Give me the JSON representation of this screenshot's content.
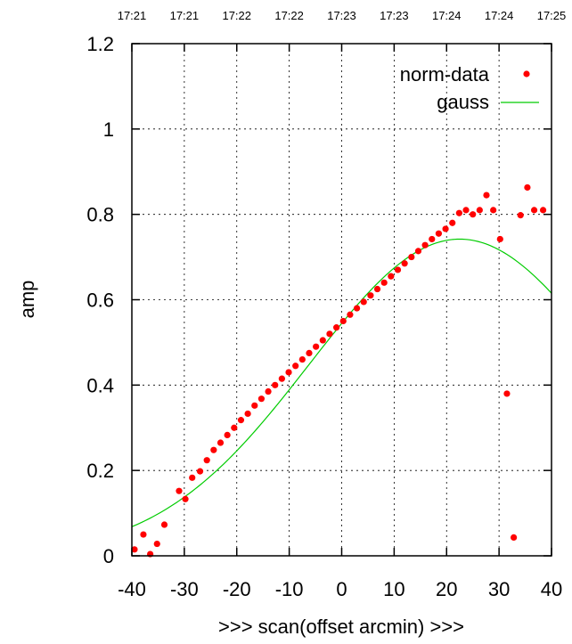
{
  "chart_data": {
    "type": "scatter",
    "title": "",
    "xlabel": ">>> scan(offset arcmin) >>>",
    "ylabel": "amp",
    "xlim": [
      -40,
      40
    ],
    "ylim": [
      0,
      1.2
    ],
    "grid": true,
    "legend_position": "top-right",
    "x_ticks": [
      -40,
      -30,
      -20,
      -10,
      0,
      10,
      20,
      30,
      40
    ],
    "x_tick_labels": [
      "-40",
      "-30",
      "-20",
      "-10",
      "0",
      "10",
      "20",
      "30",
      "40"
    ],
    "y_ticks": [
      0,
      0.2,
      0.4,
      0.6,
      0.8,
      1.0,
      1.2
    ],
    "y_tick_labels": [
      "0",
      "0.2",
      "0.4",
      "0.6",
      "0.8",
      "1",
      "1.2"
    ],
    "top_axis_labels": [
      "17:21",
      "17:21",
      "17:22",
      "17:22",
      "17:23",
      "17:23",
      "17:24",
      "17:24",
      "17:25"
    ],
    "series": [
      {
        "name": "norm-data",
        "style": "points",
        "color": "#ff0000",
        "x": [
          -39.5,
          -37.8,
          -36.5,
          -35.2,
          -33.8,
          -31,
          -29.8,
          -28.5,
          -27,
          -25.7,
          -24.4,
          -23.1,
          -21.8,
          -20.5,
          -19.2,
          -17.9,
          -16.6,
          -15.3,
          -14,
          -12.7,
          -11.4,
          -10.1,
          -8.8,
          -7.5,
          -6.2,
          -4.9,
          -3.6,
          -2.3,
          -1,
          0.3,
          1.6,
          2.9,
          4.2,
          5.5,
          6.8,
          8.1,
          9.4,
          10.7,
          12,
          13.3,
          14.6,
          15.9,
          17.2,
          18.5,
          19.8,
          21.1,
          22.4,
          23.7,
          25,
          26.3,
          27.6,
          28.9,
          30.2,
          31.5,
          32.8,
          34.1,
          35.4,
          36.7,
          38.4
        ],
        "y": [
          0.015,
          0.05,
          0.004,
          0.028,
          0.073,
          0.152,
          0.133,
          0.183,
          0.198,
          0.224,
          0.248,
          0.265,
          0.283,
          0.3,
          0.318,
          0.333,
          0.352,
          0.368,
          0.385,
          0.4,
          0.415,
          0.43,
          0.445,
          0.46,
          0.475,
          0.49,
          0.505,
          0.52,
          0.535,
          0.55,
          0.565,
          0.58,
          0.595,
          0.61,
          0.625,
          0.64,
          0.655,
          0.67,
          0.685,
          0.7,
          0.714,
          0.728,
          0.742,
          0.755,
          0.766,
          0.78,
          0.803,
          0.81,
          0.8,
          0.81,
          0.845,
          0.81,
          0.742,
          0.38,
          0.043,
          0.798,
          0.863,
          0.81,
          0.81
        ]
      },
      {
        "name": "gauss",
        "style": "line",
        "color": "#00cc00",
        "function": {
          "amplitude": 0.742,
          "center": 22.5,
          "sigma": 28.6
        },
        "x": [
          -40,
          -35,
          -30,
          -25,
          -20,
          -15,
          -10,
          -5,
          0,
          5,
          10,
          15,
          20,
          25,
          30,
          35,
          40
        ],
        "y": [
          0.076,
          0.109,
          0.151,
          0.204,
          0.265,
          0.335,
          0.408,
          0.483,
          0.554,
          0.618,
          0.673,
          0.715,
          0.739,
          0.741,
          0.719,
          0.676,
          0.615
        ]
      }
    ]
  }
}
